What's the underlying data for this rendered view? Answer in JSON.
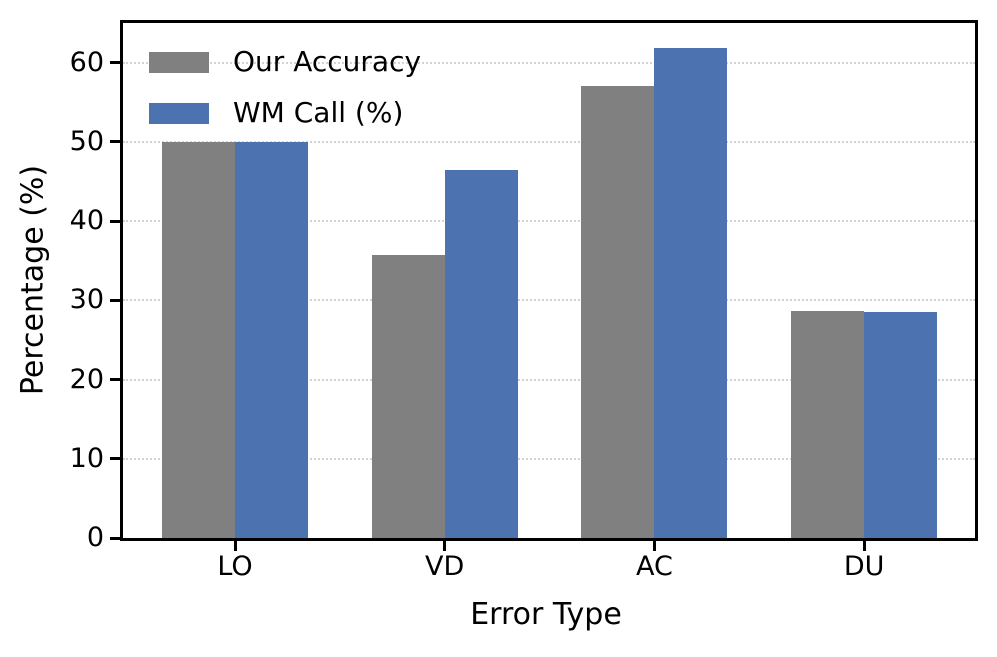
{
  "figure": {
    "background": "#ffffff",
    "spine_color": "#000000",
    "text_color": "#000000"
  },
  "chart_data": {
    "type": "bar",
    "title": "",
    "xlabel": "Error Type",
    "ylabel": "Percentage (%)",
    "categories": [
      "LO",
      "VD",
      "AC",
      "DU"
    ],
    "series": [
      {
        "name": "Our Accuracy",
        "color": "#808080",
        "values": [
          50.0,
          35.7,
          57.1,
          28.6
        ]
      },
      {
        "name": "WM Call (%)",
        "color": "#4C72B0",
        "values": [
          50.0,
          46.4,
          61.9,
          28.5
        ]
      }
    ],
    "ylim": [
      0,
      65
    ],
    "yticks": [
      0,
      10,
      20,
      30,
      40,
      50,
      60
    ],
    "grid": {
      "axis": "y",
      "style": "dotted",
      "color": "#d3d3d3"
    },
    "legend": {
      "position": "upper-left",
      "frame": false
    }
  }
}
